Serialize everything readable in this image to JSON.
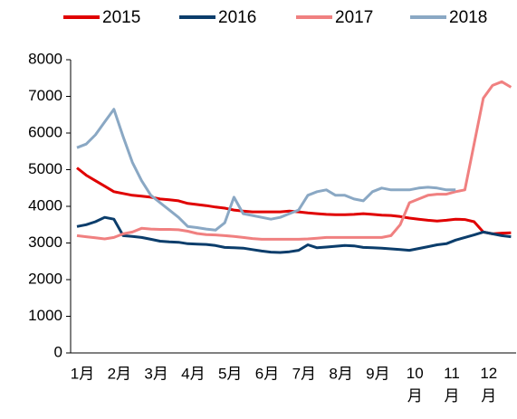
{
  "chart_data": {
    "type": "line",
    "categories": [
      "1月",
      null,
      null,
      null,
      "2月",
      null,
      null,
      null,
      "3月",
      null,
      null,
      null,
      "4月",
      null,
      null,
      null,
      "5月",
      null,
      null,
      null,
      "6月",
      null,
      null,
      null,
      "7月",
      null,
      null,
      null,
      "8月",
      null,
      null,
      null,
      "9月",
      null,
      null,
      null,
      "10月",
      null,
      null,
      null,
      "11月",
      null,
      null,
      null,
      "12月",
      null,
      null,
      null
    ],
    "series": [
      {
        "name": "2015",
        "color": "#e00000",
        "values": [
          5050,
          4850,
          4700,
          4550,
          4400,
          4350,
          4300,
          4280,
          4250,
          4200,
          4180,
          4150,
          4080,
          4050,
          4020,
          3980,
          3950,
          3900,
          3870,
          3850,
          3850,
          3850,
          3850,
          3870,
          3850,
          3820,
          3800,
          3780,
          3770,
          3770,
          3780,
          3800,
          3780,
          3760,
          3750,
          3720,
          3680,
          3650,
          3620,
          3600,
          3620,
          3650,
          3640,
          3580,
          3300,
          3250,
          3270,
          3280
        ]
      },
      {
        "name": "2016",
        "color": "#0b3d6b",
        "values": [
          3450,
          3500,
          3580,
          3700,
          3650,
          3200,
          3180,
          3150,
          3100,
          3050,
          3030,
          3020,
          2980,
          2970,
          2960,
          2930,
          2880,
          2870,
          2860,
          2820,
          2780,
          2750,
          2740,
          2760,
          2800,
          2950,
          2870,
          2890,
          2910,
          2930,
          2920,
          2880,
          2870,
          2860,
          2840,
          2820,
          2800,
          2850,
          2900,
          2950,
          2980,
          3080,
          3150,
          3220,
          3300,
          3250,
          3200,
          3170
        ]
      },
      {
        "name": "2017",
        "color": "#f08080",
        "values": [
          3200,
          3170,
          3140,
          3110,
          3150,
          3250,
          3300,
          3400,
          3380,
          3370,
          3370,
          3360,
          3320,
          3260,
          3230,
          3220,
          3200,
          3180,
          3150,
          3120,
          3100,
          3100,
          3100,
          3100,
          3100,
          3110,
          3130,
          3150,
          3150,
          3150,
          3150,
          3150,
          3150,
          3150,
          3200,
          3500,
          4100,
          4200,
          4300,
          4330,
          4330,
          4400,
          4450,
          5700,
          6950,
          7300,
          7400,
          7250
        ]
      },
      {
        "name": "2018",
        "color": "#8aa8c4",
        "values": [
          5600,
          5700,
          5950,
          6300,
          6650,
          5900,
          5200,
          4700,
          4300,
          4100,
          3900,
          3700,
          3450,
          3420,
          3380,
          3350,
          3550,
          4250,
          3800,
          3750,
          3700,
          3650,
          3700,
          3800,
          3900,
          4300,
          4400,
          4450,
          4300,
          4300,
          4200,
          4150,
          4400,
          4500,
          4450,
          4450,
          4450,
          4500,
          4520,
          4500,
          4450,
          4450,
          null,
          null,
          null,
          null,
          null,
          null
        ]
      }
    ],
    "ylim": [
      0,
      8000
    ],
    "yticks": [
      0,
      1000,
      2000,
      3000,
      4000,
      5000,
      6000,
      7000,
      8000
    ],
    "grid": false,
    "legend": "top"
  }
}
